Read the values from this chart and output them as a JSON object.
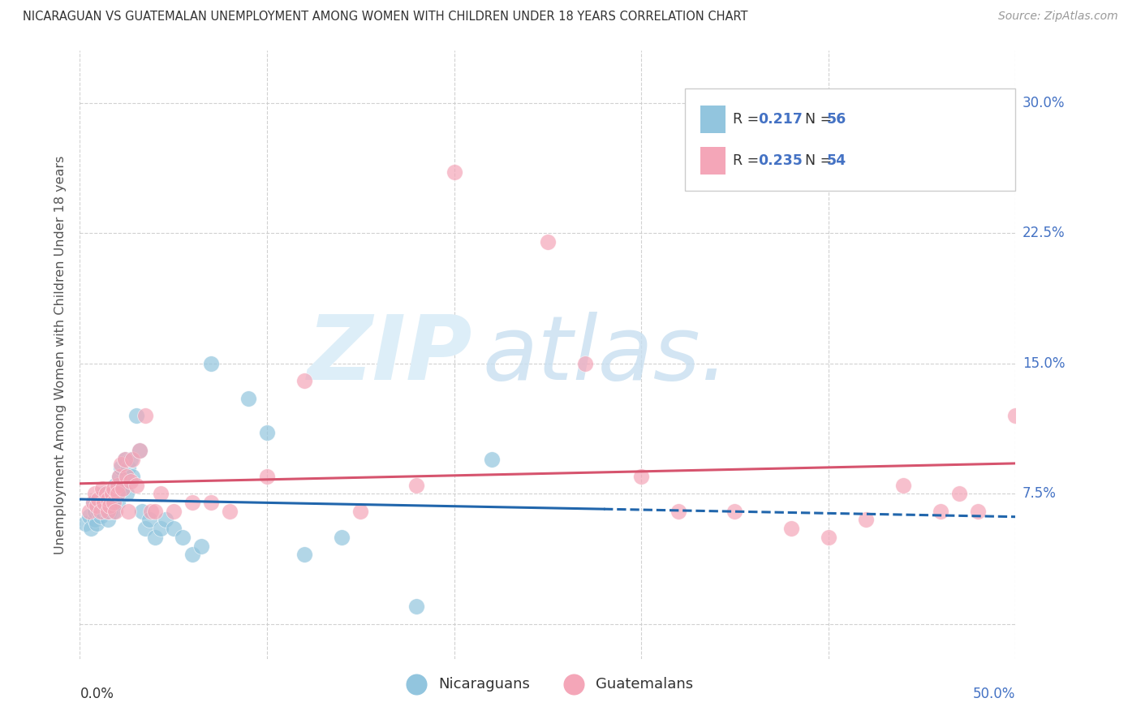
{
  "title": "NICARAGUAN VS GUATEMALAN UNEMPLOYMENT AMONG WOMEN WITH CHILDREN UNDER 18 YEARS CORRELATION CHART",
  "source": "Source: ZipAtlas.com",
  "ylabel": "Unemployment Among Women with Children Under 18 years",
  "xlim": [
    0.0,
    0.5
  ],
  "ylim": [
    -0.02,
    0.33
  ],
  "ytick_vals": [
    0.0,
    0.075,
    0.15,
    0.225,
    0.3
  ],
  "ytick_labels": [
    "",
    "7.5%",
    "15.0%",
    "22.5%",
    "30.0%"
  ],
  "xtick_vals": [
    0.0,
    0.1,
    0.2,
    0.3,
    0.4,
    0.5
  ],
  "blue_color": "#92c5de",
  "pink_color": "#f4a6b8",
  "blue_line_color": "#2166ac",
  "pink_line_color": "#d6546e",
  "tick_label_color": "#4472c4",
  "blue_R": 0.217,
  "blue_N": 56,
  "pink_R": 0.235,
  "pink_N": 54,
  "blue_x": [
    0.003,
    0.005,
    0.006,
    0.007,
    0.008,
    0.008,
    0.009,
    0.01,
    0.01,
    0.011,
    0.011,
    0.012,
    0.012,
    0.013,
    0.013,
    0.014,
    0.014,
    0.015,
    0.015,
    0.015,
    0.016,
    0.016,
    0.017,
    0.017,
    0.018,
    0.018,
    0.019,
    0.02,
    0.02,
    0.021,
    0.022,
    0.023,
    0.024,
    0.025,
    0.026,
    0.027,
    0.028,
    0.03,
    0.032,
    0.033,
    0.035,
    0.037,
    0.04,
    0.043,
    0.046,
    0.05,
    0.055,
    0.06,
    0.065,
    0.07,
    0.09,
    0.1,
    0.12,
    0.14,
    0.18,
    0.22
  ],
  "blue_y": [
    0.058,
    0.062,
    0.055,
    0.07,
    0.06,
    0.065,
    0.058,
    0.065,
    0.07,
    0.062,
    0.068,
    0.065,
    0.072,
    0.07,
    0.075,
    0.065,
    0.068,
    0.06,
    0.068,
    0.075,
    0.065,
    0.07,
    0.075,
    0.068,
    0.072,
    0.065,
    0.08,
    0.07,
    0.075,
    0.085,
    0.09,
    0.078,
    0.095,
    0.075,
    0.09,
    0.095,
    0.085,
    0.12,
    0.1,
    0.065,
    0.055,
    0.06,
    0.05,
    0.055,
    0.06,
    0.055,
    0.05,
    0.04,
    0.045,
    0.15,
    0.13,
    0.11,
    0.04,
    0.05,
    0.01,
    0.095
  ],
  "pink_x": [
    0.005,
    0.007,
    0.008,
    0.009,
    0.01,
    0.011,
    0.012,
    0.013,
    0.014,
    0.015,
    0.015,
    0.016,
    0.017,
    0.018,
    0.018,
    0.019,
    0.02,
    0.02,
    0.021,
    0.022,
    0.023,
    0.024,
    0.025,
    0.026,
    0.027,
    0.028,
    0.03,
    0.032,
    0.035,
    0.038,
    0.04,
    0.043,
    0.05,
    0.06,
    0.07,
    0.08,
    0.1,
    0.12,
    0.15,
    0.18,
    0.2,
    0.25,
    0.27,
    0.3,
    0.32,
    0.35,
    0.38,
    0.4,
    0.42,
    0.44,
    0.46,
    0.47,
    0.48,
    0.5
  ],
  "pink_y": [
    0.065,
    0.07,
    0.075,
    0.068,
    0.072,
    0.065,
    0.078,
    0.07,
    0.075,
    0.065,
    0.072,
    0.068,
    0.075,
    0.07,
    0.078,
    0.065,
    0.08,
    0.075,
    0.085,
    0.092,
    0.078,
    0.095,
    0.085,
    0.065,
    0.082,
    0.095,
    0.08,
    0.1,
    0.12,
    0.065,
    0.065,
    0.075,
    0.065,
    0.07,
    0.07,
    0.065,
    0.085,
    0.14,
    0.065,
    0.08,
    0.26,
    0.22,
    0.15,
    0.085,
    0.065,
    0.065,
    0.055,
    0.05,
    0.06,
    0.08,
    0.065,
    0.075,
    0.065,
    0.12
  ]
}
